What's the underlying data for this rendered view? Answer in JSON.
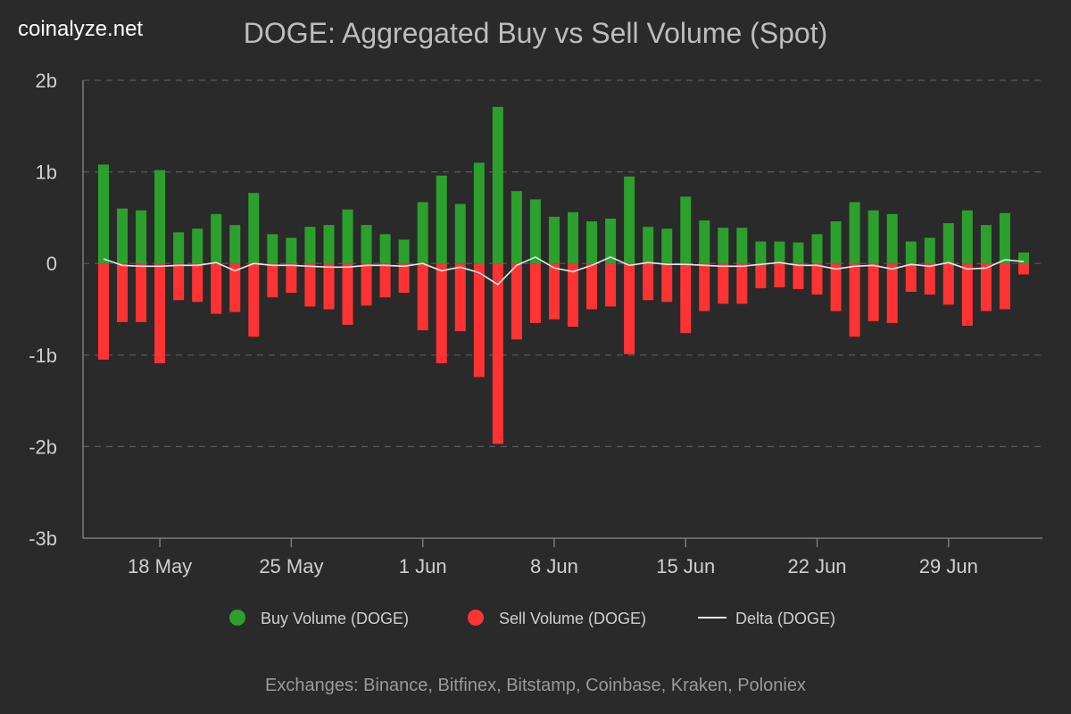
{
  "brand": "coinalyze.net",
  "footer": "Exchanges: Binance, Bitfinex, Bitstamp, Coinbase, Kraken, Poloniex",
  "chart_data": {
    "type": "bar",
    "title": "DOGE: Aggregated Buy vs Sell Volume (Spot)",
    "xlabel": "",
    "ylabel": "",
    "x_start_date": "2024-05-15",
    "x_tick_labels": [
      {
        "label": "18 May",
        "day": 3
      },
      {
        "label": "25 May",
        "day": 10
      },
      {
        "label": "1 Jun",
        "day": 17
      },
      {
        "label": "8 Jun",
        "day": 24
      },
      {
        "label": "15 Jun",
        "day": 31
      },
      {
        "label": "22 Jun",
        "day": 38
      },
      {
        "label": "29 Jun",
        "day": 45
      }
    ],
    "y_ticks": [
      {
        "label": "2b",
        "value": 2
      },
      {
        "label": "1b",
        "value": 1
      },
      {
        "label": "0",
        "value": 0
      },
      {
        "label": "-1b",
        "value": -1
      },
      {
        "label": "-2b",
        "value": -2
      },
      {
        "label": "-3b",
        "value": -3
      }
    ],
    "ylim": [
      -3,
      2
    ],
    "y_unit": "billion DOGE",
    "grid": true,
    "legend_position": "bottom",
    "categories": [
      "May 15",
      "May 16",
      "May 17",
      "May 18",
      "May 19",
      "May 20",
      "May 21",
      "May 22",
      "May 23",
      "May 24",
      "May 25",
      "May 26",
      "May 27",
      "May 28",
      "May 29",
      "May 30",
      "May 31",
      "Jun 1",
      "Jun 2",
      "Jun 3",
      "Jun 4",
      "Jun 5",
      "Jun 6",
      "Jun 7",
      "Jun 8",
      "Jun 9",
      "Jun 10",
      "Jun 11",
      "Jun 12",
      "Jun 13",
      "Jun 14",
      "Jun 15",
      "Jun 16",
      "Jun 17",
      "Jun 18",
      "Jun 19",
      "Jun 20",
      "Jun 21",
      "Jun 22",
      "Jun 23",
      "Jun 24",
      "Jun 25",
      "Jun 26",
      "Jun 27",
      "Jun 28",
      "Jun 29",
      "Jun 30",
      "Jul 1",
      "Jul 2",
      "Jul 3"
    ],
    "series": [
      {
        "name": "Buy Volume (DOGE)",
        "color": "#2ca02c",
        "values": [
          1.08,
          0.6,
          0.58,
          1.02,
          0.34,
          0.38,
          0.54,
          0.42,
          0.77,
          0.32,
          0.28,
          0.4,
          0.42,
          0.59,
          0.42,
          0.32,
          0.26,
          0.67,
          0.96,
          0.65,
          1.1,
          1.71,
          0.79,
          0.7,
          0.51,
          0.56,
          0.46,
          0.49,
          0.95,
          0.4,
          0.38,
          0.73,
          0.47,
          0.39,
          0.39,
          0.24,
          0.24,
          0.23,
          0.32,
          0.46,
          0.67,
          0.58,
          0.54,
          0.24,
          0.28,
          0.44,
          0.58,
          0.42,
          0.55,
          0.12
        ]
      },
      {
        "name": "Sell Volume (DOGE)",
        "color": "#ff3333",
        "values": [
          -1.05,
          -0.64,
          -0.64,
          -1.09,
          -0.4,
          -0.42,
          -0.55,
          -0.53,
          -0.8,
          -0.37,
          -0.32,
          -0.47,
          -0.5,
          -0.67,
          -0.46,
          -0.37,
          -0.32,
          -0.73,
          -1.09,
          -0.74,
          -1.24,
          -1.97,
          -0.83,
          -0.65,
          -0.61,
          -0.69,
          -0.5,
          -0.47,
          -0.99,
          -0.4,
          -0.42,
          -0.76,
          -0.52,
          -0.44,
          -0.44,
          -0.27,
          -0.26,
          -0.28,
          -0.34,
          -0.52,
          -0.8,
          -0.63,
          -0.65,
          -0.31,
          -0.34,
          -0.45,
          -0.68,
          -0.52,
          -0.5,
          -0.12
        ]
      },
      {
        "name": "Delta (DOGE)",
        "color": "#e8e8e8",
        "values": [
          0.05,
          -0.02,
          -0.03,
          -0.03,
          -0.02,
          -0.02,
          0.01,
          -0.08,
          0.0,
          -0.02,
          -0.02,
          -0.03,
          -0.04,
          -0.04,
          -0.02,
          -0.02,
          -0.03,
          0.0,
          -0.08,
          -0.04,
          -0.1,
          -0.23,
          -0.02,
          0.07,
          -0.05,
          -0.09,
          -0.02,
          0.07,
          -0.02,
          0.01,
          -0.01,
          -0.01,
          -0.02,
          -0.03,
          -0.03,
          -0.01,
          0.01,
          -0.02,
          -0.02,
          -0.06,
          -0.03,
          -0.02,
          -0.06,
          -0.01,
          -0.03,
          0.01,
          -0.06,
          -0.05,
          0.04,
          0.02
        ]
      }
    ]
  }
}
